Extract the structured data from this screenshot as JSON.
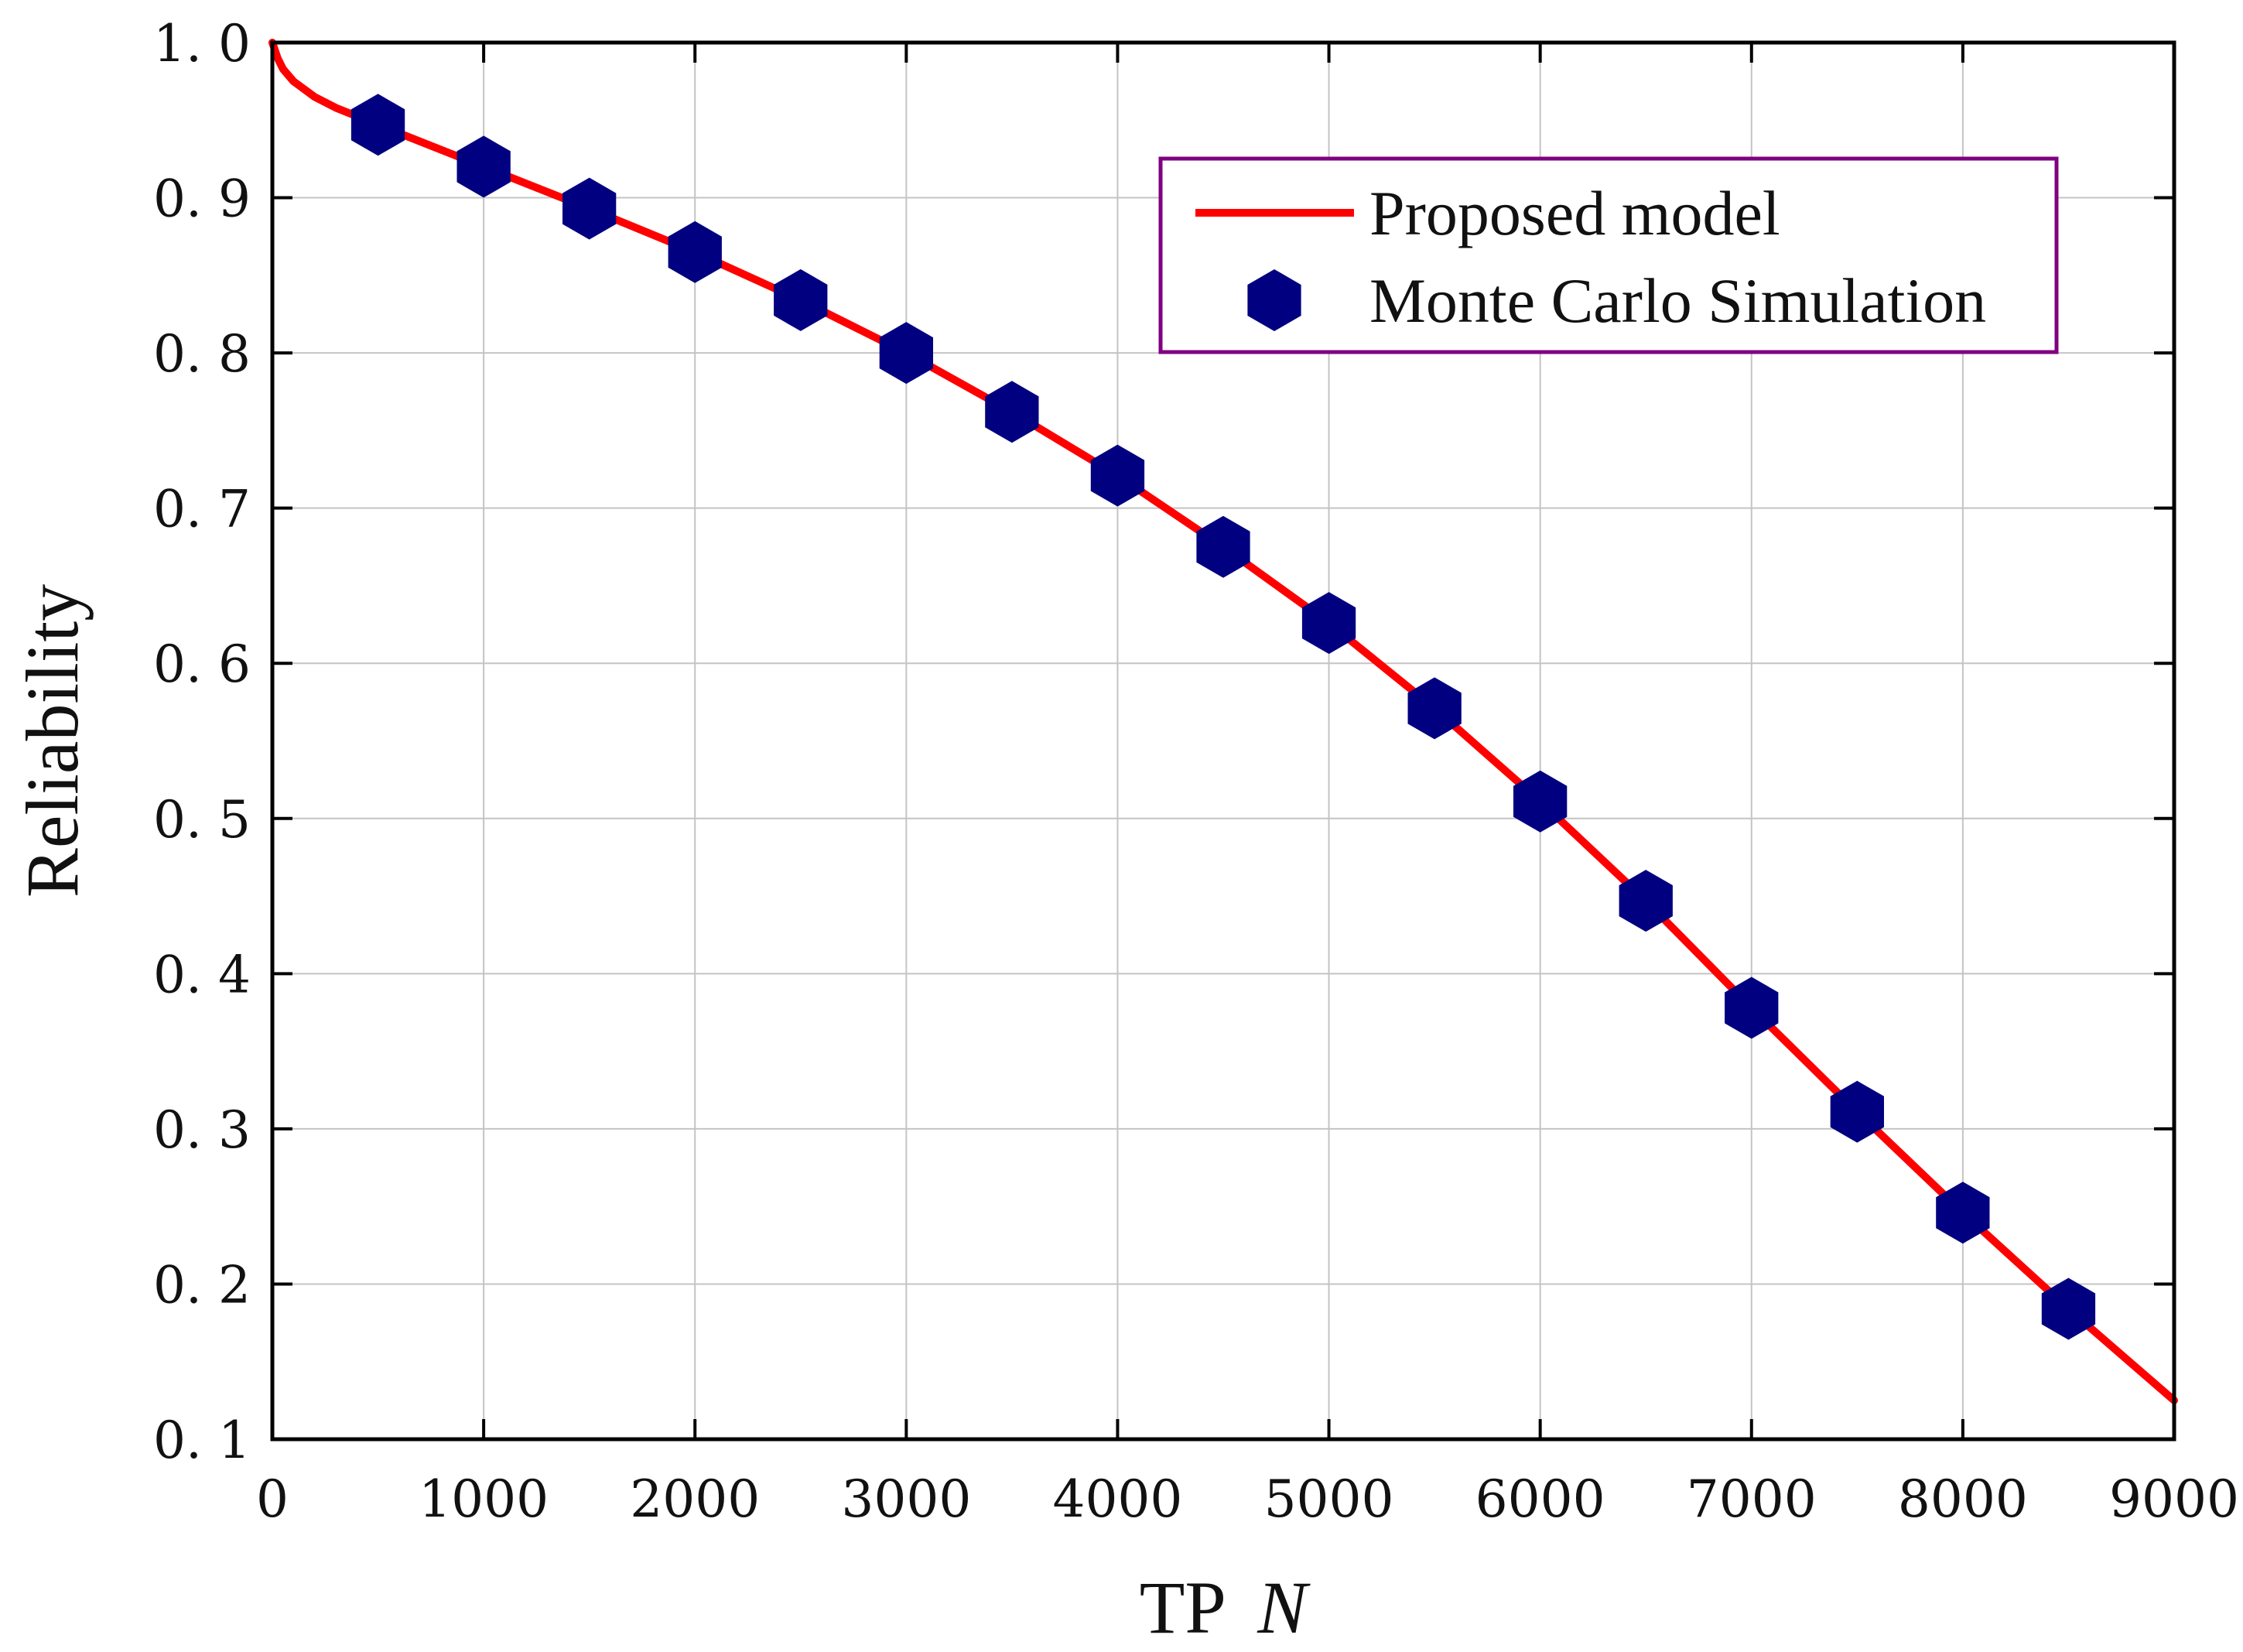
{
  "chart_data": {
    "type": "line",
    "xlabel": "TP",
    "xlabel_var": "N",
    "ylabel": "Reliability",
    "xlim": [
      0,
      9000
    ],
    "ylim": [
      0.1,
      1.0
    ],
    "grid": true,
    "legend_position": "top-right",
    "x_ticks": [
      "0",
      "1000",
      "2000",
      "3000",
      "4000",
      "5000",
      "6000",
      "7000",
      "8000",
      "9000"
    ],
    "y_ticks": [
      "0. 1",
      "0. 2",
      "0. 3",
      "0. 4",
      "0. 5",
      "0. 6",
      "0. 7",
      "0. 8",
      "0. 9",
      "1. 0"
    ],
    "series": [
      {
        "name": "Proposed model",
        "kind": "line",
        "color": "#ff0000",
        "x": [
          0,
          25,
          50,
          100,
          200,
          300,
          500,
          1000,
          1500,
          2000,
          2500,
          3000,
          3500,
          4000,
          4500,
          5000,
          5500,
          6000,
          6500,
          7000,
          7500,
          8000,
          8500,
          9000
        ],
        "y": [
          1.0,
          0.99,
          0.983,
          0.975,
          0.965,
          0.958,
          0.947,
          0.92,
          0.893,
          0.865,
          0.834,
          0.8,
          0.762,
          0.721,
          0.675,
          0.626,
          0.571,
          0.511,
          0.447,
          0.378,
          0.311,
          0.246,
          0.184,
          0.125
        ]
      },
      {
        "name": "Monte Carlo Simulation",
        "kind": "scatter",
        "marker": "hexagon",
        "color": "#000080",
        "x": [
          500,
          1000,
          1500,
          2000,
          2500,
          3000,
          3500,
          4000,
          4500,
          5000,
          5500,
          6000,
          6500,
          7000,
          7500,
          8000,
          8500
        ],
        "y": [
          0.947,
          0.92,
          0.893,
          0.865,
          0.834,
          0.8,
          0.762,
          0.721,
          0.675,
          0.626,
          0.571,
          0.511,
          0.447,
          0.378,
          0.311,
          0.246,
          0.184
        ]
      }
    ]
  }
}
